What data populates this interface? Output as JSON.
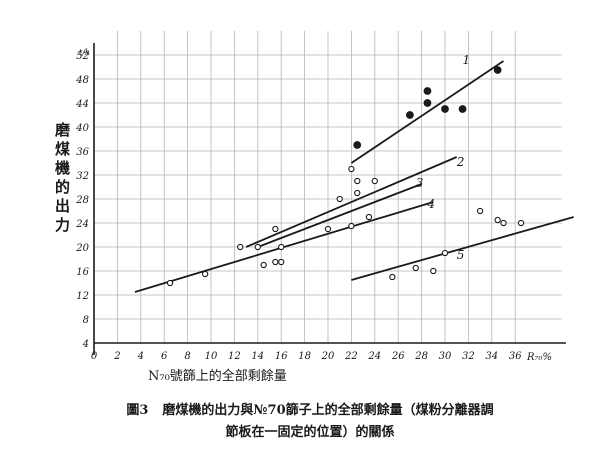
{
  "caption": {
    "figure_number": "圖3",
    "line1": "磨煤機的出力與№70篩子上的全部剩餘量（煤粉分離器調",
    "line2": "節板在一固定的位置）的關係"
  },
  "chart_data": {
    "type": "scatter",
    "title": "",
    "xlabel": "N₇₀號篩上的全部剩餘量",
    "x_unit": "R₇₀%",
    "ylabel": "磨煤機的出力",
    "y_unit": "t/h",
    "xlim": [
      0,
      40
    ],
    "ylim": [
      4,
      56
    ],
    "x_ticks": [
      "0",
      "2",
      "4",
      "6",
      "8",
      "10",
      "12",
      "14",
      "16",
      "18",
      "20",
      "22",
      "24",
      "26",
      "28",
      "30",
      "32",
      "34",
      "36"
    ],
    "y_ticks": [
      "4",
      "8",
      "12",
      "16",
      "20",
      "24",
      "28",
      "32",
      "36",
      "40",
      "44",
      "48",
      "52"
    ],
    "grid": true,
    "lines": [
      {
        "label": "1",
        "x": [
          22,
          35
        ],
        "y": [
          34,
          51
        ],
        "label_at": [
          31.5,
          50.5
        ]
      },
      {
        "label": "2",
        "x": [
          13,
          31
        ],
        "y": [
          20,
          35
        ],
        "label_at": [
          31,
          33.5
        ]
      },
      {
        "label": "3",
        "x": [
          14,
          28
        ],
        "y": [
          20,
          30.5
        ],
        "label_at": [
          27.5,
          30
        ]
      },
      {
        "label": "4",
        "x": [
          3.5,
          29
        ],
        "y": [
          12.5,
          27.5
        ],
        "label_at": [
          28.5,
          26.5
        ]
      },
      {
        "label": "5",
        "x": [
          22,
          41
        ],
        "y": [
          14.5,
          25
        ],
        "label_at": [
          31,
          18
        ]
      }
    ],
    "points_open": [
      [
        6.5,
        14
      ],
      [
        9.5,
        15.5
      ],
      [
        12.5,
        20
      ],
      [
        14,
        20
      ],
      [
        14.5,
        17
      ],
      [
        15.5,
        17.5
      ],
      [
        15.5,
        23
      ],
      [
        16,
        17.5
      ],
      [
        16,
        20
      ],
      [
        20,
        23
      ],
      [
        21,
        28
      ],
      [
        22,
        23.5
      ],
      [
        22,
        33
      ],
      [
        22.5,
        29
      ],
      [
        22.5,
        31
      ],
      [
        23.5,
        25
      ],
      [
        24,
        31
      ],
      [
        25.5,
        15
      ],
      [
        27.5,
        16.5
      ],
      [
        29,
        16
      ],
      [
        30,
        19
      ],
      [
        33,
        26
      ],
      [
        34.5,
        24.5
      ],
      [
        35,
        24
      ],
      [
        36.5,
        24
      ]
    ],
    "points_filled": [
      [
        22.5,
        37
      ],
      [
        27,
        42
      ],
      [
        28.5,
        44
      ],
      [
        28.5,
        46
      ],
      [
        30,
        43
      ],
      [
        31.5,
        43
      ],
      [
        34.5,
        49.5
      ]
    ]
  }
}
